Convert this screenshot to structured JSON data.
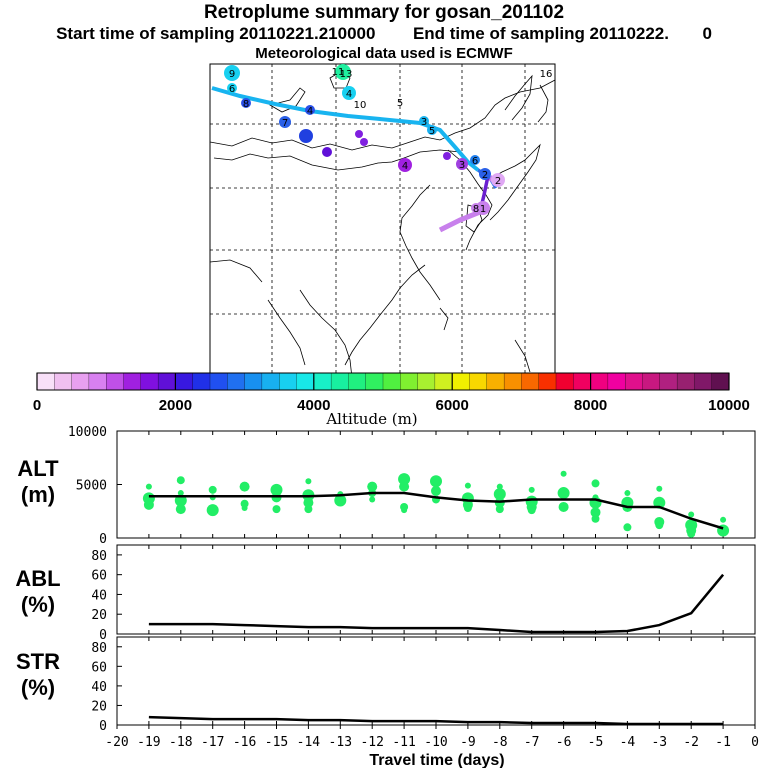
{
  "header": {
    "title": "Retroplume summary for gosan_201102",
    "start_label": "Start time of sampling 20110221.210000",
    "end_label": "End time of sampling 20110222.",
    "end_suffix": "0",
    "met_label": "Meteorological data used is ECMWF"
  },
  "colors": {
    "trajectory_upper": "#18b4f0",
    "trajectory_mid": "#2a70e8",
    "trajectory_low_1": "#6a1fd0",
    "trajectory_low_2": "#c880ec",
    "points_green": "#22ee66",
    "line_black": "#000000"
  },
  "colorbar": {
    "label": "Altitude (m)",
    "ticks": [
      "0",
      "2000",
      "4000",
      "6000",
      "8000",
      "10000"
    ],
    "min": 0,
    "max": 10000,
    "colors": [
      "#f8e0f8",
      "#f0c0f0",
      "#e8a0f0",
      "#d880f0",
      "#c050e8",
      "#a020e0",
      "#8010e0",
      "#6010d8",
      "#3818e0",
      "#2030e8",
      "#2050f0",
      "#2070f0",
      "#1890f0",
      "#18b0f0",
      "#18d0f0",
      "#18e8e8",
      "#18f0c8",
      "#18f0a0",
      "#20f080",
      "#30f060",
      "#50f040",
      "#80f030",
      "#a8f030",
      "#d0f020",
      "#f0f000",
      "#f8d800",
      "#f8b000",
      "#f89000",
      "#f86800",
      "#f83000",
      "#f00030",
      "#f00060",
      "#f00080",
      "#f000a0",
      "#e0108c",
      "#c81880",
      "#b02080",
      "#982070",
      "#801868",
      "#601050"
    ]
  },
  "map": {
    "clusters": [
      {
        "label": "1"
      },
      {
        "label": "2"
      },
      {
        "label": "2"
      },
      {
        "label": "3"
      },
      {
        "label": "3"
      },
      {
        "label": "4"
      },
      {
        "label": "4"
      },
      {
        "label": "4"
      },
      {
        "label": "5"
      },
      {
        "label": "6"
      },
      {
        "label": "6"
      },
      {
        "label": "7"
      },
      {
        "label": "8"
      },
      {
        "label": "8"
      },
      {
        "label": "9"
      },
      {
        "label": "10"
      },
      {
        "label": "11"
      },
      {
        "label": "13"
      },
      {
        "label": "16"
      },
      {
        "label": "5"
      }
    ]
  },
  "panels": {
    "alt": {
      "name": "ALT",
      "unit": "(m)"
    },
    "abl": {
      "name": "ABL",
      "unit": "(%)"
    },
    "str": {
      "name": "STR",
      "unit": "(%)"
    }
  },
  "chart_data": [
    {
      "type": "scatter",
      "title": "ALT (m)",
      "xlabel": "Travel time (days)",
      "ylabel": "ALT (m)",
      "xlim": [
        -20,
        0
      ],
      "ylim": [
        0,
        10000
      ],
      "y_ticks": [
        "0",
        "5000",
        "10000"
      ],
      "x_ticks": [
        "-20",
        "-19",
        "-18",
        "-17",
        "-16",
        "-15",
        "-14",
        "-13",
        "-12",
        "-11",
        "-10",
        "-9",
        "-8",
        "-7",
        "-6",
        "-5",
        "-4",
        "-3",
        "-2",
        "-1",
        "0"
      ],
      "median_line": {
        "x": [
          -19,
          -18,
          -17,
          -16,
          -15,
          -14,
          -13,
          -12,
          -11,
          -10,
          -9,
          -8,
          -7,
          -6,
          -5,
          -4,
          -3,
          -2,
          -1
        ],
        "y": [
          3900,
          3900,
          3900,
          3900,
          3900,
          3900,
          4000,
          4200,
          4200,
          3800,
          3500,
          3400,
          3600,
          3600,
          3600,
          2900,
          2900,
          1800,
          900
        ]
      },
      "points": [
        {
          "x": -19,
          "y": 4800
        },
        {
          "x": -19,
          "y": 3700
        },
        {
          "x": -19,
          "y": 3100
        },
        {
          "x": -18,
          "y": 5400
        },
        {
          "x": -18,
          "y": 4200
        },
        {
          "x": -18,
          "y": 3500
        },
        {
          "x": -18,
          "y": 2700
        },
        {
          "x": -17,
          "y": 4500
        },
        {
          "x": -17,
          "y": 3800
        },
        {
          "x": -17,
          "y": 2600
        },
        {
          "x": -16,
          "y": 4800
        },
        {
          "x": -16,
          "y": 3200
        },
        {
          "x": -16,
          "y": 2800
        },
        {
          "x": -15,
          "y": 4500
        },
        {
          "x": -15,
          "y": 3800
        },
        {
          "x": -15,
          "y": 2700
        },
        {
          "x": -14,
          "y": 5300
        },
        {
          "x": -14,
          "y": 4000
        },
        {
          "x": -14,
          "y": 3300
        },
        {
          "x": -14,
          "y": 2700
        },
        {
          "x": -13,
          "y": 4100
        },
        {
          "x": -13,
          "y": 3500
        },
        {
          "x": -12,
          "y": 4800
        },
        {
          "x": -12,
          "y": 4200
        },
        {
          "x": -12,
          "y": 3600
        },
        {
          "x": -11,
          "y": 5500
        },
        {
          "x": -11,
          "y": 4800
        },
        {
          "x": -11,
          "y": 2900
        },
        {
          "x": -11,
          "y": 2600
        },
        {
          "x": -10,
          "y": 5300
        },
        {
          "x": -10,
          "y": 4400
        },
        {
          "x": -10,
          "y": 3600
        },
        {
          "x": -9,
          "y": 4900
        },
        {
          "x": -9,
          "y": 3700
        },
        {
          "x": -9,
          "y": 3100
        },
        {
          "x": -9,
          "y": 2800
        },
        {
          "x": -8,
          "y": 4800
        },
        {
          "x": -8,
          "y": 4100
        },
        {
          "x": -8,
          "y": 3300
        },
        {
          "x": -8,
          "y": 2700
        },
        {
          "x": -7,
          "y": 4500
        },
        {
          "x": -7,
          "y": 3400
        },
        {
          "x": -7,
          "y": 2900
        },
        {
          "x": -7,
          "y": 2600
        },
        {
          "x": -6,
          "y": 6000
        },
        {
          "x": -6,
          "y": 4200
        },
        {
          "x": -6,
          "y": 2900
        },
        {
          "x": -5,
          "y": 5100
        },
        {
          "x": -5,
          "y": 3800
        },
        {
          "x": -5,
          "y": 3300
        },
        {
          "x": -5,
          "y": 2400
        },
        {
          "x": -5,
          "y": 1800
        },
        {
          "x": -4,
          "y": 4200
        },
        {
          "x": -4,
          "y": 3300
        },
        {
          "x": -4,
          "y": 2900
        },
        {
          "x": -4,
          "y": 1000
        },
        {
          "x": -3,
          "y": 4600
        },
        {
          "x": -3,
          "y": 3300
        },
        {
          "x": -3,
          "y": 1500
        },
        {
          "x": -3,
          "y": 1200
        },
        {
          "x": -2,
          "y": 2200
        },
        {
          "x": -2,
          "y": 1200
        },
        {
          "x": -2,
          "y": 700
        },
        {
          "x": -2,
          "y": 400
        },
        {
          "x": -1,
          "y": 1700
        },
        {
          "x": -1,
          "y": 700
        }
      ]
    },
    {
      "type": "line",
      "title": "ABL (%)",
      "xlabel": "Travel time (days)",
      "ylabel": "ABL (%)",
      "xlim": [
        -20,
        0
      ],
      "ylim": [
        0,
        90
      ],
      "y_ticks": [
        "0",
        "20",
        "40",
        "60",
        "80"
      ],
      "x": [
        -19,
        -18,
        -17,
        -16,
        -15,
        -14,
        -13,
        -12,
        -11,
        -10,
        -9,
        -8,
        -7,
        -6,
        -5,
        -4,
        -3,
        -2,
        -1
      ],
      "values": [
        10,
        10,
        10,
        9,
        8,
        7,
        7,
        6,
        6,
        6,
        6,
        4,
        2,
        2,
        2,
        3,
        9,
        21,
        60
      ]
    },
    {
      "type": "line",
      "title": "STR (%)",
      "xlabel": "Travel time (days)",
      "ylabel": "STR (%)",
      "xlim": [
        -20,
        0
      ],
      "ylim": [
        0,
        90
      ],
      "y_ticks": [
        "0",
        "20",
        "40",
        "60",
        "80"
      ],
      "x": [
        -19,
        -18,
        -17,
        -16,
        -15,
        -14,
        -13,
        -12,
        -11,
        -10,
        -9,
        -8,
        -7,
        -6,
        -5,
        -4,
        -3,
        -2,
        -1
      ],
      "values": [
        8,
        7,
        6,
        6,
        6,
        5,
        5,
        4,
        4,
        4,
        3,
        3,
        2,
        2,
        2,
        1,
        1,
        1,
        1
      ]
    }
  ]
}
